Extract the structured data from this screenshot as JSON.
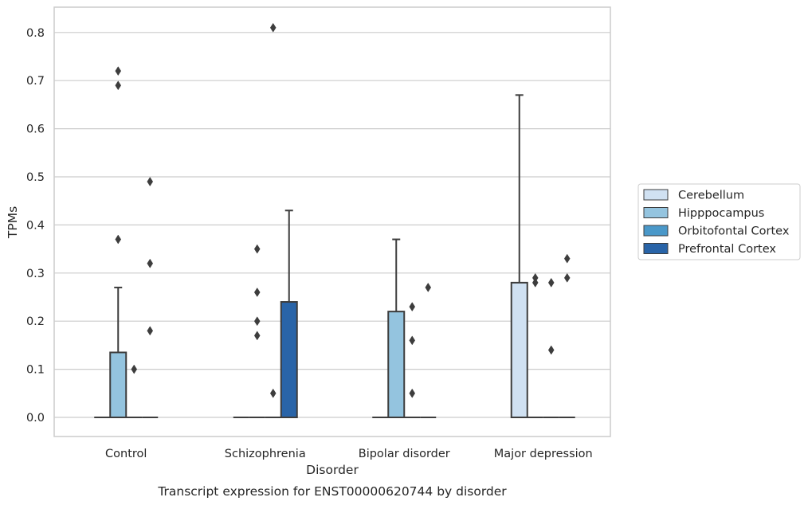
{
  "chart_data": {
    "type": "box",
    "caption": "Transcript expression for ENST00000620744 by disorder",
    "xlabel": "Disorder",
    "ylabel": "TPMs",
    "ylim": [
      -0.04,
      0.85
    ],
    "yticks": [
      "0.0",
      "0.1",
      "0.2",
      "0.3",
      "0.4",
      "0.5",
      "0.6",
      "0.7",
      "0.8"
    ],
    "grid": "horizontal",
    "legend_position": "right",
    "categories": [
      "Control",
      "Schizophrenia",
      "Bipolar disorder",
      "Major depression"
    ],
    "series": [
      {
        "name": "Cerebellum",
        "color": "#d0e1f2",
        "boxes": [
          {
            "min": 0,
            "q1": 0,
            "median": 0,
            "q3": 0,
            "max": 0,
            "outliers": []
          },
          {
            "min": 0,
            "q1": 0,
            "median": 0,
            "q3": 0,
            "max": 0,
            "outliers": []
          },
          {
            "min": 0,
            "q1": 0,
            "median": 0,
            "q3": 0,
            "max": 0,
            "outliers": []
          },
          {
            "min": 0,
            "q1": 0,
            "median": 0,
            "q3": 0.28,
            "max": 0.67,
            "outliers": []
          }
        ]
      },
      {
        "name": "Hipppocampus",
        "color": "#94c4df",
        "boxes": [
          {
            "min": 0,
            "q1": 0,
            "median": 0,
            "q3": 0.135,
            "max": 0.27,
            "outliers": [
              0.72,
              0.69,
              0.37
            ]
          },
          {
            "min": 0,
            "q1": 0,
            "median": 0,
            "q3": 0,
            "max": 0,
            "outliers": [
              0.35,
              0.26,
              0.2,
              0.17
            ]
          },
          {
            "min": 0,
            "q1": 0,
            "median": 0,
            "q3": 0.22,
            "max": 0.37,
            "outliers": []
          },
          {
            "min": 0,
            "q1": 0,
            "median": 0,
            "q3": 0,
            "max": 0,
            "outliers": [
              0.29,
              0.28
            ]
          }
        ]
      },
      {
        "name": "Orbitofontal Cortex",
        "color": "#4a98c9",
        "boxes": [
          {
            "min": 0,
            "q1": 0,
            "median": 0,
            "q3": 0,
            "max": 0,
            "outliers": [
              0.1
            ]
          },
          {
            "min": 0,
            "q1": 0,
            "median": 0,
            "q3": 0,
            "max": 0,
            "outliers": [
              0.81,
              0.05
            ]
          },
          {
            "min": 0,
            "q1": 0,
            "median": 0,
            "q3": 0,
            "max": 0,
            "outliers": [
              0.23,
              0.16,
              0.05
            ]
          },
          {
            "min": 0,
            "q1": 0,
            "median": 0,
            "q3": 0,
            "max": 0,
            "outliers": [
              0.28,
              0.14
            ]
          }
        ]
      },
      {
        "name": "Prefrontal Cortex",
        "color": "#2964a8",
        "boxes": [
          {
            "min": 0,
            "q1": 0,
            "median": 0,
            "q3": 0,
            "max": 0,
            "outliers": [
              0.49,
              0.32,
              0.18
            ]
          },
          {
            "min": 0,
            "q1": 0,
            "median": 0,
            "q3": 0.24,
            "max": 0.43,
            "outliers": []
          },
          {
            "min": 0,
            "q1": 0,
            "median": 0,
            "q3": 0,
            "max": 0,
            "outliers": [
              0.27
            ]
          },
          {
            "min": 0,
            "q1": 0,
            "median": 0,
            "q3": 0,
            "max": 0,
            "outliers": [
              0.33,
              0.29
            ]
          }
        ]
      }
    ]
  }
}
